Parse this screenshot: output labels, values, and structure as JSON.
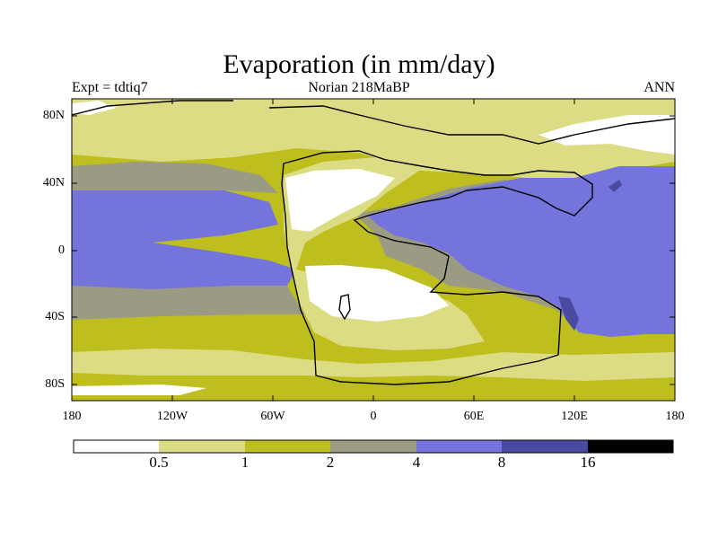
{
  "title": "Evaporation (in mm/day)",
  "subtitle_left": "Expt = tdtiq7",
  "subtitle_center": "Norian   218MaBP",
  "subtitle_right": "ANN",
  "map": {
    "lon_range": [
      -180,
      180
    ],
    "lat_range": [
      -90,
      90
    ],
    "y_ticks": [
      "80N",
      "40N",
      "0",
      "40S",
      "80S"
    ],
    "x_ticks": [
      "180",
      "120W",
      "60W",
      "0",
      "60E",
      "120E",
      "180"
    ]
  },
  "colorbar": {
    "colors": [
      "#ffffff",
      "#dcdc84",
      "#bebe1e",
      "#9b9b84",
      "#7474dc",
      "#4a4aa0",
      "#000000"
    ],
    "labels": [
      "0.5",
      "1",
      "2",
      "4",
      "8",
      "16"
    ]
  },
  "palette": {
    "white": "#ffffff",
    "light_olive": "#dcdc84",
    "olive": "#bebe1e",
    "gray": "#9b9b84",
    "blue": "#7474dc",
    "dark_blue": "#4a4aa0"
  }
}
